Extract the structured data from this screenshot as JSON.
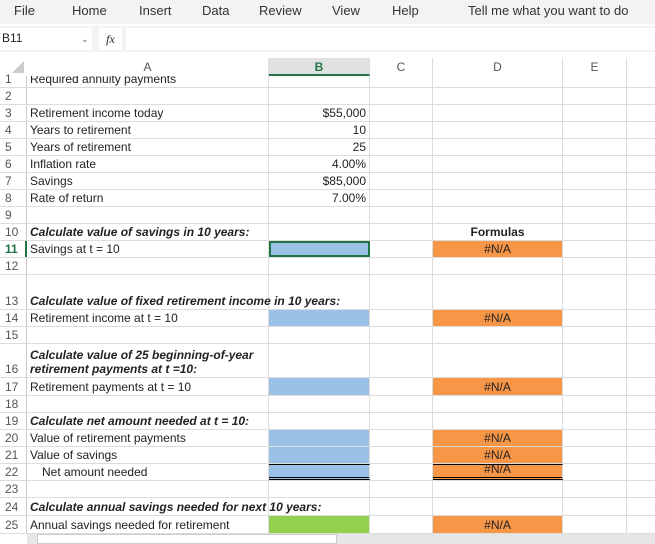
{
  "menu": [
    "File",
    "Home",
    "Insert",
    "Data",
    "Review",
    "View",
    "Help",
    "Tell me what you want to do"
  ],
  "name_box": "B11",
  "fx_label": "fx",
  "columns": [
    "A",
    "B",
    "C",
    "D",
    "E"
  ],
  "rows": [
    {
      "n": "1",
      "a": "Required annuity payments",
      "b": "",
      "d": ""
    },
    {
      "n": "2",
      "a": "",
      "b": "",
      "d": ""
    },
    {
      "n": "3",
      "a": "Retirement income today",
      "b": "$55,000",
      "d": ""
    },
    {
      "n": "4",
      "a": "Years to retirement",
      "b": "10",
      "d": ""
    },
    {
      "n": "5",
      "a": "Years of retirement",
      "b": "25",
      "d": ""
    },
    {
      "n": "6",
      "a": "Inflation rate",
      "b": "4.00%",
      "d": ""
    },
    {
      "n": "7",
      "a": "Savings",
      "b": "$85,000",
      "d": ""
    },
    {
      "n": "8",
      "a": "Rate of return",
      "b": "7.00%",
      "d": ""
    },
    {
      "n": "9",
      "a": "",
      "b": "",
      "d": ""
    },
    {
      "n": "10",
      "a": "Calculate value of savings in 10 years:",
      "b": "",
      "d": "Formulas"
    },
    {
      "n": "11",
      "a": "Savings at t = 10",
      "b": "",
      "d": "#N/A"
    },
    {
      "n": "12",
      "a": "",
      "b": "",
      "d": ""
    },
    {
      "n": "13",
      "a": "Calculate value of fixed retirement income in 10 years:",
      "b": "",
      "d": ""
    },
    {
      "n": "14",
      "a": "Retirement income at t = 10",
      "b": "",
      "d": "#N/A"
    },
    {
      "n": "15",
      "a": "",
      "b": "",
      "d": ""
    },
    {
      "n": "16",
      "a": "Calculate value of 25 beginning-of-year retirement payments at t =10:",
      "b": "",
      "d": ""
    },
    {
      "n": "17",
      "a": "Retirement payments at t = 10",
      "b": "",
      "d": "#N/A"
    },
    {
      "n": "18",
      "a": "",
      "b": "",
      "d": ""
    },
    {
      "n": "19",
      "a": "Calculate net amount needed at t = 10:",
      "b": "",
      "d": ""
    },
    {
      "n": "20",
      "a": "Value of retirement payments",
      "b": "",
      "d": "#N/A"
    },
    {
      "n": "21",
      "a": "Value of savings",
      "b": "",
      "d": "#N/A"
    },
    {
      "n": "22",
      "a": "Net amount needed",
      "b": "",
      "d": "#N/A"
    },
    {
      "n": "23",
      "a": "",
      "b": "",
      "d": ""
    },
    {
      "n": "24",
      "a": "Calculate annual savings needed for next 10 years:",
      "b": "",
      "d": ""
    },
    {
      "n": "25",
      "a": "Annual savings needed for retirement",
      "b": "",
      "d": "#N/A"
    }
  ],
  "colors": {
    "input_blue": "#9bc2e6",
    "formula_orange": "#f79646",
    "answer_green": "#92d050",
    "excel_green": "#217346"
  }
}
